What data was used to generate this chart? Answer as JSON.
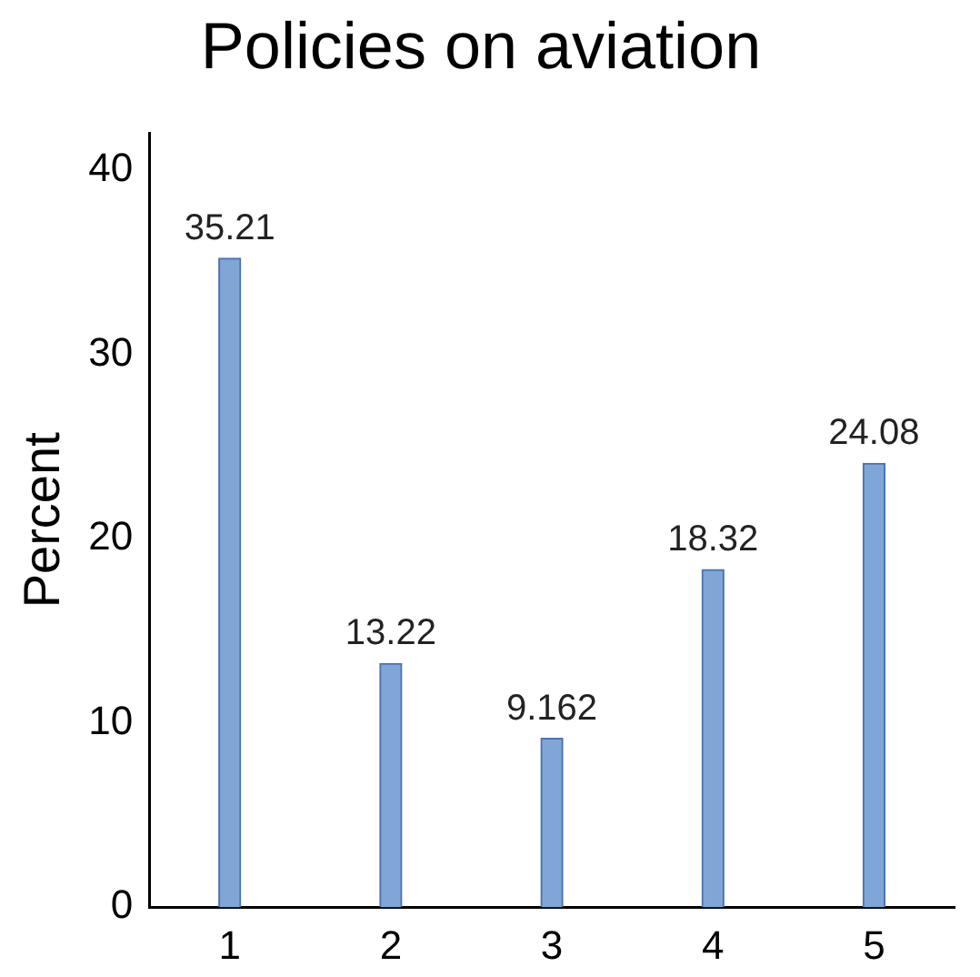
{
  "chart_data": {
    "type": "bar",
    "title": "Policies on aviation",
    "ylabel": "Percent",
    "categories": [
      "1",
      "2",
      "3",
      "4",
      "5"
    ],
    "values": [
      35.21,
      13.22,
      9.162,
      18.32,
      24.08
    ],
    "color": "#7fa6d6",
    "ylim": [
      0,
      42
    ],
    "yticks": [
      0,
      10,
      20,
      30,
      40
    ],
    "data_labels": true,
    "grid": false,
    "legend": false
  }
}
